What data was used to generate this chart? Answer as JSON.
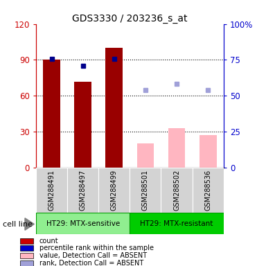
{
  "title": "GDS3330 / 203236_s_at",
  "samples": [
    "GSM288491",
    "GSM288497",
    "GSM288499",
    "GSM288501",
    "GSM288502",
    "GSM288536"
  ],
  "groups": [
    "HT29: MTX-sensitive",
    "HT29: MTX-resistant"
  ],
  "bar_values": [
    90,
    72,
    100,
    null,
    null,
    null
  ],
  "absent_bar_values": [
    null,
    null,
    null,
    20,
    33,
    27
  ],
  "dot_blue_dark": [
    91,
    85,
    91,
    null,
    null,
    null
  ],
  "dot_blue_light": [
    null,
    null,
    null,
    65,
    70,
    65
  ],
  "bar_color_present": "#990000",
  "bar_color_absent": "#FFB6C1",
  "dot_color_dark": "#00008B",
  "dot_color_light": "#A0A0D8",
  "ylim_left": [
    0,
    120
  ],
  "ylim_right": [
    0,
    100
  ],
  "yticks_left": [
    0,
    30,
    60,
    90,
    120
  ],
  "yticks_right": [
    0,
    25,
    50,
    75,
    100
  ],
  "ytick_labels_left": [
    "0",
    "30",
    "60",
    "90",
    "120"
  ],
  "ytick_labels_right": [
    "0",
    "25",
    "50",
    "75",
    "100%"
  ],
  "left_axis_color": "#CC0000",
  "right_axis_color": "#0000CC",
  "group_color_1": "#90EE90",
  "group_color_2": "#00CC00",
  "cell_line_label": "cell line",
  "legend_labels": [
    "count",
    "percentile rank within the sample",
    "value, Detection Call = ABSENT",
    "rank, Detection Call = ABSENT"
  ],
  "legend_colors": [
    "#CC0000",
    "#0000CC",
    "#FFB6C1",
    "#A0A0D8"
  ],
  "bar_width": 0.55,
  "dot_size": 5,
  "background_color": "#FFFFFF"
}
